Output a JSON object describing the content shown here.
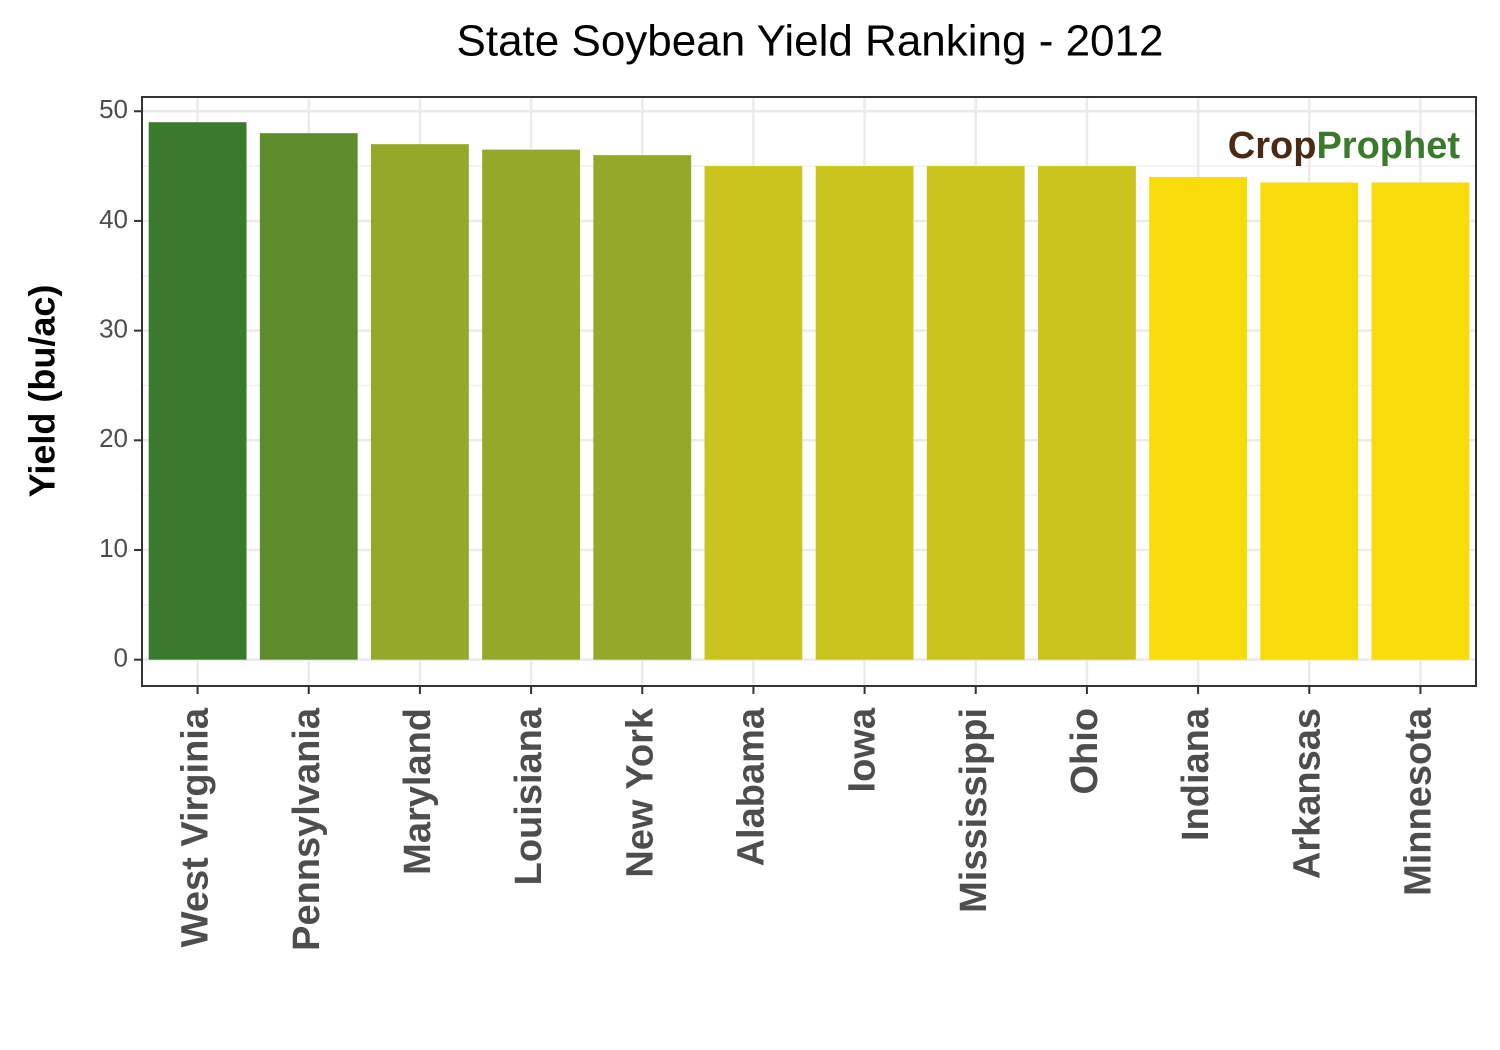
{
  "chart_data": {
    "type": "bar",
    "title": "State Soybean Yield Ranking - 2012",
    "y_label": "Yield (bu/ac)",
    "categories": [
      "West Virginia",
      "Pennsylvania",
      "Maryland",
      "Louisiana",
      "New York",
      "Alabama",
      "Iowa",
      "Mississippi",
      "Ohio",
      "Indiana",
      "Arkansas",
      "Minnesota"
    ],
    "values": [
      49,
      48,
      47,
      46.5,
      46,
      45,
      45,
      45,
      45,
      44,
      43.5,
      43.5
    ],
    "colors": [
      "#3a7a2c",
      "#5e8c2c",
      "#96a828",
      "#96a828",
      "#96a828",
      "#cbc41e",
      "#cbc41e",
      "#cbc41e",
      "#cbc41e",
      "#f7dc0a",
      "#f7dc0a",
      "#f7dc0a"
    ],
    "ylim": [
      -2.4,
      51.3
    ],
    "yticks": [
      0,
      10,
      20,
      30,
      40,
      50
    ],
    "minor_yticks": [
      5,
      15,
      25,
      35,
      45
    ],
    "grid": true,
    "watermark": [
      {
        "text": "Crop",
        "color": "#4a2a10"
      },
      {
        "text": "Prophet",
        "color": "#3a7a2c"
      }
    ]
  }
}
